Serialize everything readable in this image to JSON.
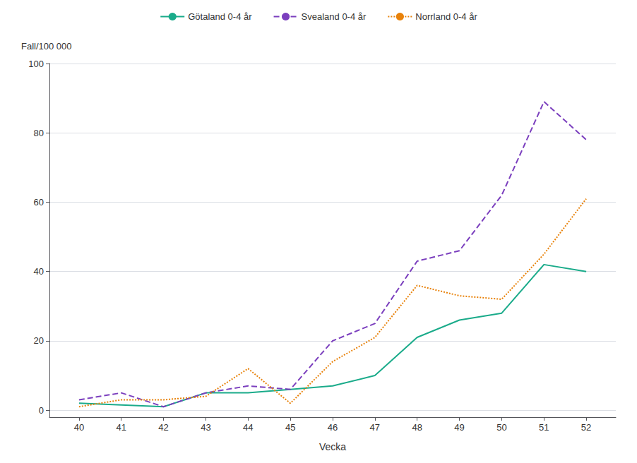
{
  "chart_data": {
    "type": "line",
    "xlabel": "Vecka",
    "ylabel": "Fall/100 000",
    "x": [
      40,
      41,
      42,
      43,
      44,
      45,
      46,
      47,
      48,
      49,
      50,
      51,
      52
    ],
    "series": [
      {
        "name": "Götaland 0-4 år",
        "color": "#1aab8a",
        "line_style": "solid",
        "values": [
          2,
          1.5,
          1,
          5,
          5,
          6,
          7,
          10,
          21,
          26,
          28,
          42,
          40
        ]
      },
      {
        "name": "Svealand 0-4 år",
        "color": "#7b3fbe",
        "line_style": "dashed",
        "values": [
          3,
          5,
          1,
          5,
          7,
          6,
          20,
          25,
          43,
          46,
          62,
          89,
          78
        ]
      },
      {
        "name": "Norrland 0-4 år",
        "color": "#e8820a",
        "line_style": "dotted",
        "values": [
          1,
          3,
          3,
          4,
          12,
          2,
          14,
          21,
          36,
          33,
          32,
          45,
          61
        ]
      }
    ],
    "xlim": [
      39.3,
      52.7
    ],
    "xticks": [
      40,
      41,
      42,
      43,
      44,
      45,
      46,
      47,
      48,
      49,
      50,
      51,
      52
    ],
    "ylim": [
      -2,
      100
    ],
    "yticks": [
      0,
      20,
      40,
      60,
      80,
      100
    ],
    "grid": true,
    "legend": "top"
  }
}
